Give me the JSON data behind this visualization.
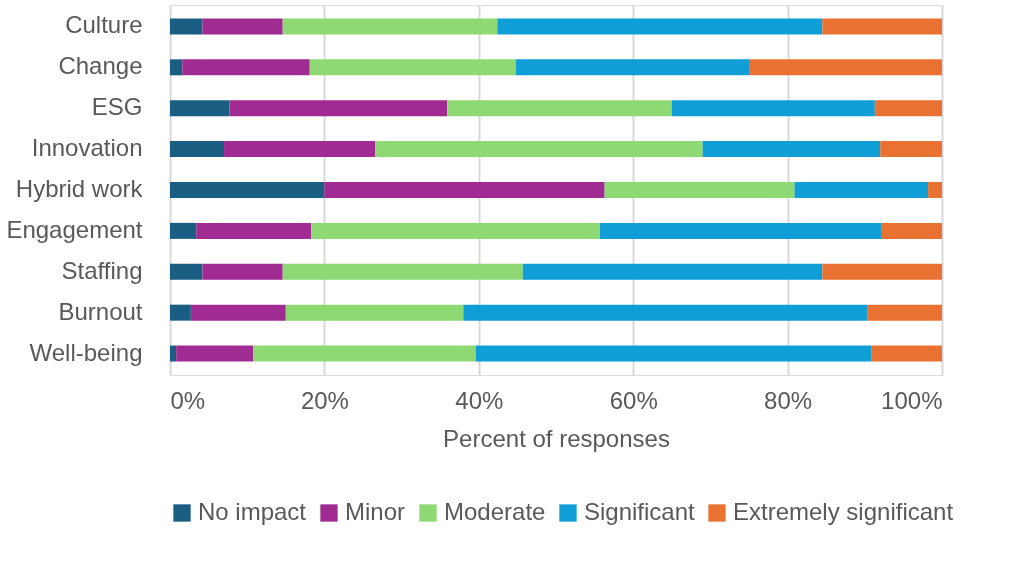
{
  "chart_data": {
    "type": "bar",
    "orientation": "horizontal",
    "stacked": true,
    "categories": [
      "Culture",
      "Change",
      "ESG",
      "Innovation",
      "Hybrid work",
      "Engagement",
      "Staffing",
      "Burnout",
      "Well-being"
    ],
    "series": [
      {
        "name": "No impact",
        "color": "#1a5e84",
        "values": [
          4.2,
          1.6,
          7.7,
          7.0,
          20.0,
          3.4,
          4.2,
          2.7,
          0.8
        ]
      },
      {
        "name": "Minor",
        "color": "#a02b93",
        "values": [
          10.4,
          16.5,
          28.2,
          19.6,
          36.3,
          14.9,
          10.4,
          12.3,
          10.0
        ]
      },
      {
        "name": "Moderate",
        "color": "#8fd974",
        "values": [
          27.8,
          26.7,
          29.1,
          42.4,
          24.6,
          37.4,
          31.1,
          23.0,
          28.8
        ]
      },
      {
        "name": "Significant",
        "color": "#0f9ed5",
        "values": [
          42.1,
          30.2,
          26.3,
          23.0,
          17.3,
          36.4,
          38.8,
          52.3,
          51.3
        ]
      },
      {
        "name": "Extremely significant",
        "color": "#e97132",
        "values": [
          15.5,
          25.0,
          8.7,
          8.0,
          1.8,
          7.9,
          15.5,
          9.7,
          9.1
        ]
      }
    ],
    "xlim": [
      0,
      100
    ],
    "xticks": [
      {
        "value": 0,
        "label": "0%"
      },
      {
        "value": 20,
        "label": "20%"
      },
      {
        "value": 40,
        "label": "40%"
      },
      {
        "value": 60,
        "label": "60%"
      },
      {
        "value": 80,
        "label": "80%"
      },
      {
        "value": 100,
        "label": "100%"
      }
    ],
    "xlabel": "Percent of responses",
    "grid": "x",
    "legend": "bottom"
  }
}
